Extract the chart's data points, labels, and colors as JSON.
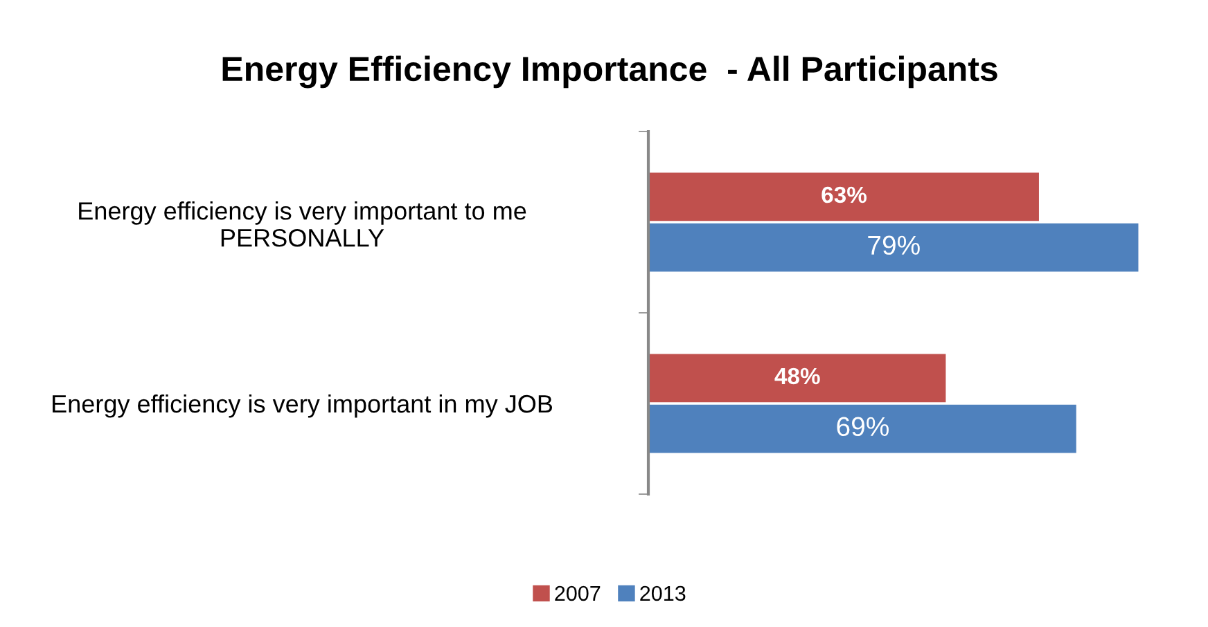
{
  "chart_data": {
    "type": "bar",
    "orientation": "horizontal",
    "title": "Energy Efficiency Importance  - All Participants",
    "categories": [
      "Energy efficiency is very important to me\nPERSONALLY",
      "Energy efficiency is very important in my JOB"
    ],
    "series": [
      {
        "name": "2007",
        "color": "#c0504d",
        "values": [
          63,
          48
        ],
        "value_labels": [
          "63%",
          "48%"
        ]
      },
      {
        "name": "2013",
        "color": "#4f81bd",
        "values": [
          79,
          69
        ],
        "value_labels": [
          "79%",
          "69%"
        ]
      }
    ],
    "legend": "bottom"
  }
}
